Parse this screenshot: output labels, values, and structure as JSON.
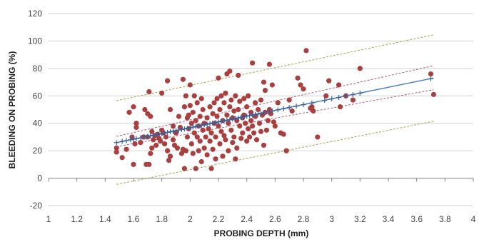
{
  "chart_data": {
    "type": "scatter",
    "title": "",
    "xlabel": "PROBING DEPTH (mm)",
    "ylabel": "BLEEDING ON PROBING (%)",
    "xlim": [
      1,
      4
    ],
    "ylim": [
      -20,
      120
    ],
    "x_ticks": [
      "1",
      "1.2",
      "1.4",
      "1.6",
      "1.8",
      "2",
      "2.2",
      "2.4",
      "2.6",
      "2.8",
      "3",
      "3.2",
      "3.4",
      "3.6",
      "3.8",
      "4"
    ],
    "y_ticks": [
      "-20",
      "0",
      "20",
      "40",
      "60",
      "80",
      "100",
      "120"
    ],
    "grid": {
      "horizontal": true,
      "vertical": false
    },
    "legend": "none",
    "colors": {
      "points": "#a93f3f",
      "fit_line": "#4f81bd",
      "fitted_markers": "#3a5f9a",
      "confidence_band": "#b65b7a",
      "prediction_band": "#a7a54d",
      "gridline": "#d0d0d0"
    },
    "series": [
      {
        "kind": "observed",
        "points": [
          [
            1.48,
            22
          ],
          [
            1.48,
            19
          ],
          [
            1.52,
            15
          ],
          [
            1.55,
            21
          ],
          [
            1.57,
            48
          ],
          [
            1.59,
            30
          ],
          [
            1.6,
            52
          ],
          [
            1.61,
            25
          ],
          [
            1.62,
            40
          ],
          [
            1.62,
            37
          ],
          [
            1.6,
            10
          ],
          [
            1.65,
            26
          ],
          [
            1.67,
            30
          ],
          [
            1.68,
            50
          ],
          [
            1.69,
            10
          ],
          [
            1.7,
            47
          ],
          [
            1.7,
            30
          ],
          [
            1.71,
            63
          ],
          [
            1.71,
            10
          ],
          [
            1.72,
            45
          ],
          [
            1.72,
            18
          ],
          [
            1.73,
            22
          ],
          [
            1.73,
            34
          ],
          [
            1.74,
            28
          ],
          [
            1.75,
            31
          ],
          [
            1.76,
            24
          ],
          [
            1.77,
            32
          ],
          [
            1.78,
            29
          ],
          [
            1.79,
            27
          ],
          [
            1.8,
            62
          ],
          [
            1.8,
            35
          ],
          [
            1.81,
            33
          ],
          [
            1.82,
            25
          ],
          [
            1.83,
            30
          ],
          [
            1.84,
            20
          ],
          [
            1.84,
            71
          ],
          [
            1.85,
            13
          ],
          [
            1.86,
            50
          ],
          [
            1.86,
            16
          ],
          [
            1.88,
            28
          ],
          [
            1.88,
            38
          ],
          [
            1.89,
            24
          ],
          [
            1.9,
            33
          ],
          [
            1.91,
            22
          ],
          [
            1.92,
            45
          ],
          [
            1.93,
            37
          ],
          [
            1.94,
            18
          ],
          [
            1.95,
            72
          ],
          [
            1.95,
            21
          ],
          [
            1.96,
            52
          ],
          [
            1.96,
            7
          ],
          [
            1.97,
            60
          ],
          [
            1.97,
            20
          ],
          [
            1.98,
            44
          ],
          [
            1.98,
            30
          ],
          [
            1.99,
            46
          ],
          [
            1.99,
            36
          ],
          [
            2.0,
            68
          ],
          [
            2.0,
            53
          ],
          [
            2.01,
            40
          ],
          [
            2.01,
            25
          ],
          [
            2.02,
            48
          ],
          [
            2.02,
            18
          ],
          [
            2.03,
            60
          ],
          [
            2.03,
            33
          ],
          [
            2.04,
            7
          ],
          [
            2.04,
            42
          ],
          [
            2.05,
            55
          ],
          [
            2.05,
            30
          ],
          [
            2.06,
            20
          ],
          [
            2.06,
            38
          ],
          [
            2.07,
            45
          ],
          [
            2.07,
            27
          ],
          [
            2.08,
            58
          ],
          [
            2.08,
            12
          ],
          [
            2.09,
            35
          ],
          [
            2.09,
            50
          ],
          [
            2.1,
            40
          ],
          [
            2.1,
            22
          ],
          [
            2.11,
            30
          ],
          [
            2.12,
            44
          ],
          [
            2.12,
            17
          ],
          [
            2.13,
            36
          ],
          [
            2.14,
            52
          ],
          [
            2.14,
            27
          ],
          [
            2.15,
            7
          ],
          [
            2.15,
            33
          ],
          [
            2.16,
            47
          ],
          [
            2.16,
            21
          ],
          [
            2.17,
            55
          ],
          [
            2.17,
            40
          ],
          [
            2.18,
            30
          ],
          [
            2.18,
            14
          ],
          [
            2.19,
            58
          ],
          [
            2.19,
            45
          ],
          [
            2.2,
            73
          ],
          [
            2.2,
            38
          ],
          [
            2.21,
            25
          ],
          [
            2.21,
            50
          ],
          [
            2.22,
            60
          ],
          [
            2.22,
            34
          ],
          [
            2.23,
            42
          ],
          [
            2.23,
            16
          ],
          [
            2.24,
            55
          ],
          [
            2.24,
            31
          ],
          [
            2.25,
            62
          ],
          [
            2.25,
            28
          ],
          [
            2.26,
            76
          ],
          [
            2.26,
            46
          ],
          [
            2.27,
            40
          ],
          [
            2.27,
            20
          ],
          [
            2.28,
            78
          ],
          [
            2.28,
            52
          ],
          [
            2.29,
            35
          ],
          [
            2.29,
            57
          ],
          [
            2.3,
            44
          ],
          [
            2.3,
            26
          ],
          [
            2.31,
            49
          ],
          [
            2.31,
            30
          ],
          [
            2.32,
            60
          ],
          [
            2.32,
            14
          ],
          [
            2.33,
            42
          ],
          [
            2.33,
            22
          ],
          [
            2.34,
            75
          ],
          [
            2.34,
            50
          ],
          [
            2.35,
            38
          ],
          [
            2.35,
            56
          ],
          [
            2.36,
            29
          ],
          [
            2.37,
            44
          ],
          [
            2.37,
            33
          ],
          [
            2.38,
            58
          ],
          [
            2.38,
            46
          ],
          [
            2.39,
            40
          ],
          [
            2.4,
            52
          ],
          [
            2.4,
            27
          ],
          [
            2.41,
            60
          ],
          [
            2.41,
            36
          ],
          [
            2.42,
            30
          ],
          [
            2.43,
            48
          ],
          [
            2.43,
            42
          ],
          [
            2.44,
            84
          ],
          [
            2.44,
            38
          ],
          [
            2.45,
            33
          ],
          [
            2.46,
            55
          ],
          [
            2.46,
            45
          ],
          [
            2.47,
            28
          ],
          [
            2.48,
            50
          ],
          [
            2.49,
            40
          ],
          [
            2.5,
            57
          ],
          [
            2.5,
            34
          ],
          [
            2.51,
            46
          ],
          [
            2.52,
            70
          ],
          [
            2.52,
            24
          ],
          [
            2.53,
            64
          ],
          [
            2.53,
            48
          ],
          [
            2.54,
            35
          ],
          [
            2.55,
            42
          ],
          [
            2.56,
            83
          ],
          [
            2.56,
            50
          ],
          [
            2.57,
            47
          ],
          [
            2.58,
            68
          ],
          [
            2.59,
            41
          ],
          [
            2.6,
            38
          ],
          [
            2.62,
            55
          ],
          [
            2.64,
            33
          ],
          [
            2.66,
            32
          ],
          [
            2.68,
            20
          ],
          [
            2.7,
            57
          ],
          [
            2.72,
            49
          ],
          [
            2.76,
            73
          ],
          [
            2.78,
            68
          ],
          [
            2.8,
            65
          ],
          [
            2.82,
            93
          ],
          [
            2.85,
            51
          ],
          [
            2.86,
            52
          ],
          [
            2.87,
            49
          ],
          [
            2.9,
            30
          ],
          [
            2.96,
            60
          ],
          [
            2.98,
            71
          ],
          [
            3.05,
            68
          ],
          [
            3.06,
            52
          ],
          [
            3.1,
            60
          ],
          [
            3.15,
            57
          ],
          [
            3.2,
            80
          ],
          [
            3.7,
            76
          ],
          [
            3.72,
            61
          ]
        ]
      },
      {
        "kind": "fitted",
        "points": [
          [
            1.48,
            25.9
          ],
          [
            1.52,
            26.8
          ],
          [
            1.55,
            27.4
          ],
          [
            1.58,
            28.0
          ],
          [
            1.6,
            28.4
          ],
          [
            1.62,
            28.8
          ],
          [
            1.65,
            29.4
          ],
          [
            1.68,
            30.0
          ],
          [
            1.7,
            30.5
          ],
          [
            1.72,
            30.9
          ],
          [
            1.74,
            31.3
          ],
          [
            1.76,
            31.7
          ],
          [
            1.78,
            32.1
          ],
          [
            1.8,
            32.6
          ],
          [
            1.82,
            33.0
          ],
          [
            1.84,
            33.4
          ],
          [
            1.86,
            33.8
          ],
          [
            1.88,
            34.2
          ],
          [
            1.9,
            34.7
          ],
          [
            1.92,
            35.1
          ],
          [
            1.94,
            35.5
          ],
          [
            1.96,
            35.9
          ],
          [
            1.98,
            36.3
          ],
          [
            2.0,
            36.8
          ],
          [
            2.02,
            37.2
          ],
          [
            2.04,
            37.6
          ],
          [
            2.06,
            38.0
          ],
          [
            2.08,
            38.4
          ],
          [
            2.1,
            38.9
          ],
          [
            2.12,
            39.3
          ],
          [
            2.14,
            39.7
          ],
          [
            2.16,
            40.1
          ],
          [
            2.18,
            40.5
          ],
          [
            2.2,
            41.0
          ],
          [
            2.22,
            41.4
          ],
          [
            2.24,
            41.8
          ],
          [
            2.26,
            42.2
          ],
          [
            2.28,
            42.6
          ],
          [
            2.3,
            43.1
          ],
          [
            2.32,
            43.5
          ],
          [
            2.34,
            43.9
          ],
          [
            2.36,
            44.3
          ],
          [
            2.38,
            44.7
          ],
          [
            2.4,
            45.2
          ],
          [
            2.42,
            45.6
          ],
          [
            2.44,
            46.0
          ],
          [
            2.46,
            46.4
          ],
          [
            2.48,
            46.8
          ],
          [
            2.5,
            47.3
          ],
          [
            2.52,
            47.7
          ],
          [
            2.55,
            48.3
          ],
          [
            2.58,
            48.9
          ],
          [
            2.62,
            49.8
          ],
          [
            2.66,
            50.6
          ],
          [
            2.7,
            51.5
          ],
          [
            2.75,
            52.5
          ],
          [
            2.8,
            53.6
          ],
          [
            2.86,
            54.8
          ],
          [
            2.95,
            56.7
          ],
          [
            3.0,
            57.8
          ],
          [
            3.05,
            58.8
          ],
          [
            3.1,
            59.9
          ],
          [
            3.15,
            60.9
          ],
          [
            3.2,
            62.0
          ],
          [
            3.7,
            72.5
          ]
        ]
      }
    ],
    "fit_line": {
      "x": [
        1.48,
        3.72
      ],
      "y": [
        25.9,
        73.0
      ]
    },
    "confidence_band": {
      "upper": {
        "x": [
          1.48,
          3.72
        ],
        "y": [
          30.5,
          82.0
        ]
      },
      "lower": {
        "x": [
          1.48,
          3.72
        ],
        "y": [
          23.0,
          64.5
        ]
      }
    },
    "prediction_band": {
      "upper": {
        "x": [
          1.48,
          3.72
        ],
        "y": [
          56.5,
          104.5
        ]
      },
      "lower": {
        "x": [
          1.48,
          3.72
        ],
        "y": [
          -4.5,
          41.5
        ]
      }
    }
  }
}
